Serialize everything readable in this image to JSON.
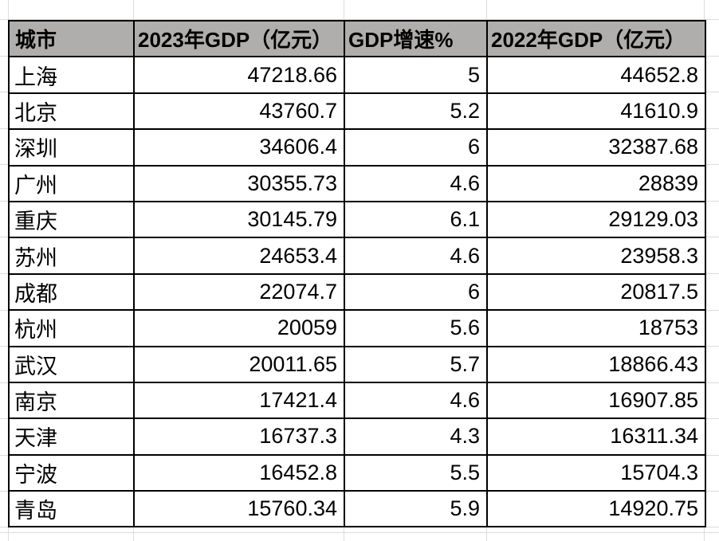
{
  "chart_data": {
    "type": "table",
    "columns": [
      "城市",
      "2023年GDP（亿元）",
      "GDP增速%",
      "2022年GDP（亿元）"
    ],
    "rows": [
      [
        "上海",
        47218.66,
        5,
        44652.8
      ],
      [
        "北京",
        43760.7,
        5.2,
        41610.9
      ],
      [
        "深圳",
        34606.4,
        6,
        32387.68
      ],
      [
        "广州",
        30355.73,
        4.6,
        28839
      ],
      [
        "重庆",
        30145.79,
        6.1,
        29129.03
      ],
      [
        "苏州",
        24653.4,
        4.6,
        23958.3
      ],
      [
        "成都",
        22074.7,
        6,
        20817.5
      ],
      [
        "杭州",
        20059,
        5.6,
        18753
      ],
      [
        "武汉",
        20011.65,
        5.7,
        18866.43
      ],
      [
        "南京",
        17421.4,
        4.6,
        16907.85
      ],
      [
        "天津",
        16737.3,
        4.3,
        16311.34
      ],
      [
        "宁波",
        16452.8,
        5.5,
        15704.3
      ],
      [
        "青岛",
        15760.34,
        5.9,
        14920.75
      ]
    ],
    "layout": {
      "header_bold": true,
      "city_align": "left",
      "number_align": "right",
      "grid": "spreadsheet gridlines visible around table"
    }
  },
  "colors": {
    "header_bg": "#b0aeac",
    "cell_bg": "#ffffff",
    "table_border": "#000000",
    "sheet_gridline": "#dcdcdc",
    "text": "#000000"
  }
}
